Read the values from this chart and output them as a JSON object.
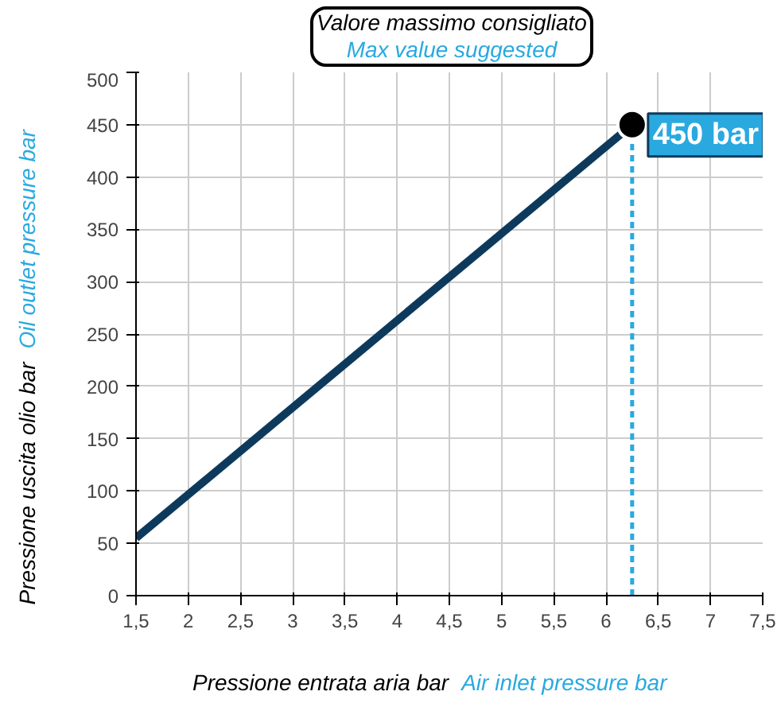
{
  "chart_data": {
    "type": "line",
    "xlabel": "Pressione entrata  aria bar",
    "ylabel": "Pressione uscita olio bar",
    "annotations": [
      "Valore massimo consigliato",
      "Max value suggested",
      {
        "text": "450 bar",
        "x": 6.25,
        "y": 450
      },
      "Air inlet pressure bar",
      "Oil outlet pressure bar"
    ],
    "x": [
      1.5,
      6.25
    ],
    "series": [
      {
        "color": "#0d3a5c",
        "values": [
          55,
          450
        ],
        "marker": "none",
        "line_style": "solid"
      },
      {
        "type": "scatter",
        "color": "#000000",
        "values": [
          null,
          450
        ],
        "marker": "circle"
      }
    ],
    "ref_lines": [
      {
        "axis": "x",
        "value": 6.25,
        "color": "#29a9e0",
        "line_style": "dashed"
      }
    ],
    "xlim": [
      1.5,
      7.5
    ],
    "ylim": [
      0,
      500
    ],
    "xticks": [
      {
        "value": 1.5,
        "label": "1,5"
      },
      2,
      {
        "value": 2.5,
        "label": "2,5"
      },
      3,
      {
        "value": 3.5,
        "label": "3,5"
      },
      4,
      {
        "value": 4.5,
        "label": "4,5"
      },
      5,
      {
        "value": 5.5,
        "label": "5,5"
      },
      6,
      {
        "value": 6.5,
        "label": "6,5"
      },
      7,
      {
        "value": 7.5,
        "label": "7,5"
      }
    ],
    "yticks": [
      0,
      50,
      100,
      150,
      200,
      250,
      300,
      350,
      400,
      450,
      500
    ],
    "grid": true
  }
}
